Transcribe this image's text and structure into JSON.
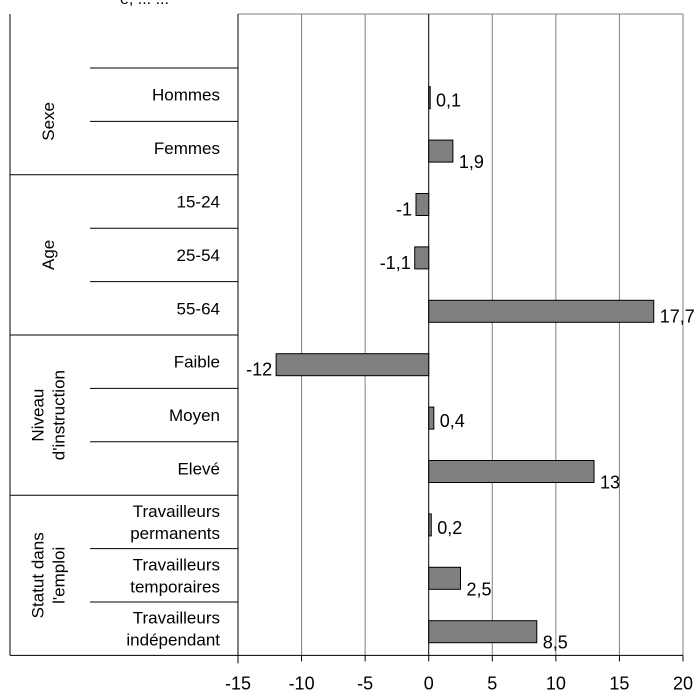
{
  "chart_data": {
    "type": "bar",
    "orientation": "horizontal",
    "header_fragment": "e, ... ...",
    "x_ticks": [
      "-15",
      "-10",
      "-5",
      "0",
      "5",
      "10",
      "15",
      "20"
    ],
    "xlim": [
      -15,
      20
    ],
    "grid": true,
    "groups": [
      {
        "label": "Sexe",
        "lines": [
          "Sexe"
        ],
        "categories": [
          {
            "label": "Hommes",
            "lines": [
              "Hommes"
            ],
            "value": 0.1,
            "value_label": "0,1"
          },
          {
            "label": "Femmes",
            "lines": [
              "Femmes"
            ],
            "value": 1.9,
            "value_label": "1,9"
          }
        ]
      },
      {
        "label": "Age",
        "lines": [
          "Age"
        ],
        "categories": [
          {
            "label": "15-24",
            "lines": [
              "15-24"
            ],
            "value": -1,
            "value_label": "-1"
          },
          {
            "label": "25-54",
            "lines": [
              "25-54"
            ],
            "value": -1.1,
            "value_label": "-1,1"
          },
          {
            "label": "55-64",
            "lines": [
              "55-64"
            ],
            "value": 17.7,
            "value_label": "17,7"
          }
        ]
      },
      {
        "label": "Niveau d'instruction",
        "lines": [
          "Niveau",
          "d'instruction"
        ],
        "categories": [
          {
            "label": "Faible",
            "lines": [
              "Faible"
            ],
            "value": -12,
            "value_label": "-12"
          },
          {
            "label": "Moyen",
            "lines": [
              "Moyen"
            ],
            "value": 0.4,
            "value_label": "0,4"
          },
          {
            "label": "Elevé",
            "lines": [
              "Elevé"
            ],
            "value": 13,
            "value_label": "13"
          }
        ]
      },
      {
        "label": "Statut dans l'emploi",
        "lines": [
          "Statut dans",
          "l'emploi"
        ],
        "categories": [
          {
            "label": "Travailleurs permanents",
            "lines": [
              "Travailleurs",
              "permanents"
            ],
            "value": 0.2,
            "value_label": "0,2"
          },
          {
            "label": "Travailleurs temporaires",
            "lines": [
              "Travailleurs",
              "temporaires"
            ],
            "value": 2.5,
            "value_label": "2,5"
          },
          {
            "label": "Travailleurs indépendant",
            "lines": [
              "Travailleurs",
              "indépendant"
            ],
            "value": 8.5,
            "value_label": "8,5"
          }
        ]
      }
    ],
    "colors": {
      "bar_fill": "#808080",
      "bar_stroke": "#000000",
      "grid": "#808080",
      "axis": "#000000"
    }
  }
}
